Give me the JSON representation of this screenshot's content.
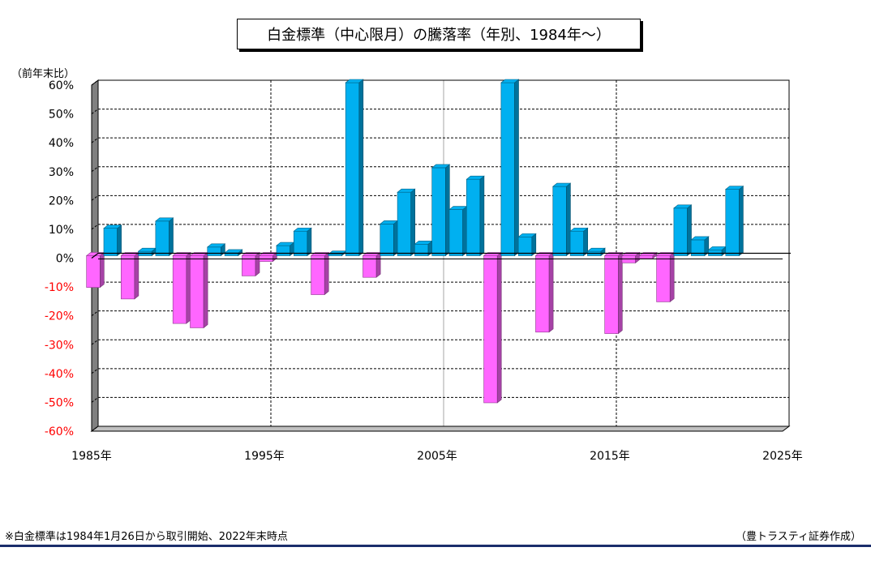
{
  "title": "白金標準（中心限月）の騰落率（年別、1984年～）",
  "unit_label": "（前年末比）",
  "footnote": "※白金標準は1984年1月26日から取引開始、2022年末時点",
  "credit": "（豊トラスティ証券作成）",
  "colors": {
    "positive": "#00b0f0",
    "negative": "#ff66ff",
    "bottom_rule": "#1a2d6b"
  },
  "chart_data": {
    "type": "bar",
    "title": "白金標準（中心限月）の騰落率（年別、1984年～）",
    "ylabel": "（前年末比）",
    "xlabel": "",
    "ylim": [
      -60,
      60
    ],
    "yticks": [
      "60%",
      "50%",
      "40%",
      "30%",
      "20%",
      "10%",
      "0%",
      "-10%",
      "-20%",
      "-30%",
      "-40%",
      "-50%",
      "-60%"
    ],
    "xticks": [
      "1985年",
      "1995年",
      "2005年",
      "2015年",
      "2025年"
    ],
    "grid": true,
    "years": [
      1985,
      1986,
      1987,
      1988,
      1989,
      1990,
      1991,
      1992,
      1993,
      1994,
      1995,
      1996,
      1997,
      1998,
      1999,
      2000,
      2001,
      2002,
      2003,
      2004,
      2005,
      2006,
      2007,
      2008,
      2009,
      2010,
      2011,
      2012,
      2013,
      2014,
      2015,
      2016,
      2017,
      2018,
      2019,
      2020,
      2021,
      2022
    ],
    "values": [
      -11,
      9.5,
      -15,
      1.5,
      12,
      -23.5,
      -25,
      3,
      1,
      -7,
      -2,
      3.5,
      8.5,
      -13.5,
      0.5,
      60,
      -7.5,
      11,
      22,
      4,
      30.5,
      16,
      26.5,
      -51,
      60,
      6.5,
      -26.5,
      24,
      8.5,
      1.5,
      -27,
      -2.5,
      -1,
      -16,
      16.5,
      5.5,
      2,
      23
    ]
  }
}
